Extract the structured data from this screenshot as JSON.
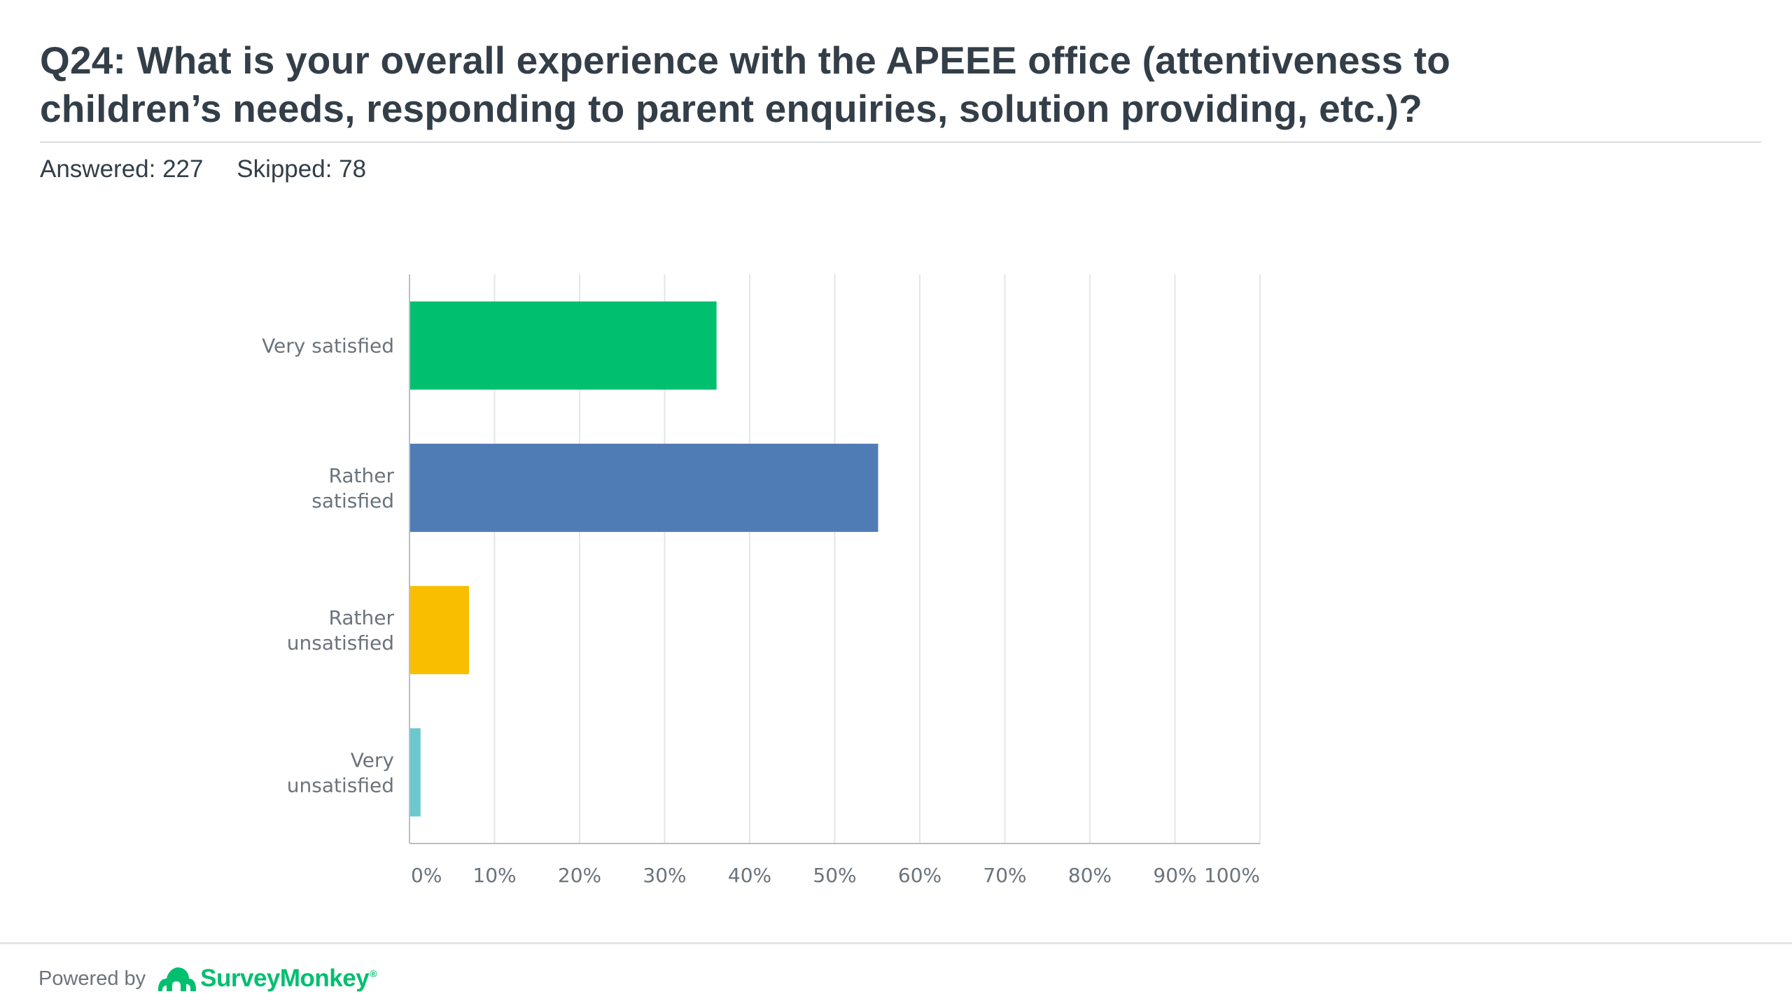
{
  "question": {
    "title": "Q24: What is your overall experience with the APEEE office (attentiveness to children’s needs, responding to parent enquiries,  solution providing, etc.)?",
    "answered": "Answered: 227",
    "skipped": "Skipped: 78"
  },
  "chart_data": {
    "type": "bar",
    "orientation": "horizontal",
    "title": "",
    "xlabel": "",
    "ylabel": "",
    "categories": [
      "Very satisfied",
      "Rather satisfied",
      "Rather unsatisfied",
      "Very unsatisfied"
    ],
    "values": [
      36.1,
      55.1,
      7.0,
      1.3
    ],
    "colors": [
      "#00bf6f",
      "#507cb6",
      "#f9be00",
      "#6bc8cd"
    ],
    "xlim": [
      0,
      100
    ],
    "ticks": [
      "0%",
      "10%",
      "20%",
      "30%",
      "40%",
      "50%",
      "60%",
      "70%",
      "80%",
      "90%",
      "100%"
    ],
    "grid": true,
    "legend": false
  },
  "footer": {
    "powered_by": "Powered by",
    "brand": "SurveyMonkey",
    "brand_mark": "®",
    "brand_color": "#00bf6f",
    "logo_icon": "monkey-logo-icon"
  }
}
